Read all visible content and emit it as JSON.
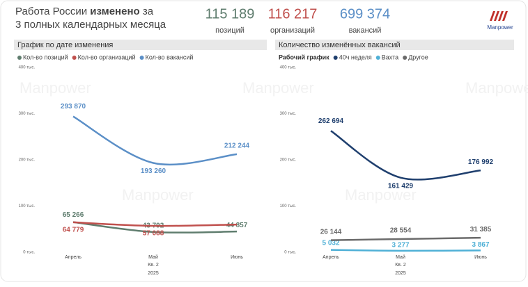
{
  "header": {
    "title": [
      "Работа России",
      "изменено",
      "за"
    ],
    "subtitle": "3 полных календарных месяца",
    "logo": "Manpower",
    "watermark": "Manpower"
  },
  "kpis": [
    {
      "value": "115 189",
      "label": "позиций",
      "color": "#5f7d6e"
    },
    {
      "value": "116 217",
      "label": "организаций",
      "color": "#c0504d"
    },
    {
      "value": "699 374",
      "label": "вакансий",
      "color": "#5b8fc7"
    }
  ],
  "chart_data": [
    {
      "type": "line",
      "title": "График по дате изменения",
      "categories": [
        "Апрель",
        "Май",
        "Июнь"
      ],
      "x_sublabels": [
        "Кв. 2",
        "2025"
      ],
      "series": [
        {
          "name": "Кол-во позиций",
          "color": "#5f7d6e",
          "values": [
            65266,
            43792,
            44857
          ],
          "value_labels": [
            "65 266",
            "43 792",
            "44 857"
          ]
        },
        {
          "name": "Кол-во организаций",
          "color": "#c0504d",
          "values": [
            64779,
            57088,
            60000
          ],
          "value_labels": [
            "64 779",
            "57 088",
            null
          ]
        },
        {
          "name": "Кол-во вакансий",
          "color": "#5b8fc7",
          "values": [
            293870,
            193260,
            212244
          ],
          "value_labels": [
            "293 870",
            "193 260",
            "212 244"
          ]
        }
      ],
      "ylim": [
        0,
        400000
      ],
      "yticks": [
        {
          "value": 0,
          "label": "0 тыс."
        },
        {
          "value": 100000,
          "label": "100 тыс."
        },
        {
          "value": 200000,
          "label": "200 тыс."
        },
        {
          "value": 300000,
          "label": "300 тыс."
        },
        {
          "value": 400000,
          "label": "400 тыс."
        }
      ]
    },
    {
      "type": "line",
      "title": "Количество изменённых вакансий",
      "legend_title": "Рабочий график",
      "categories": [
        "Апрель",
        "Май",
        "Июнь"
      ],
      "x_sublabels": [
        "Кв. 2",
        "2025"
      ],
      "series": [
        {
          "name": "40ч неделя",
          "color": "#1f3f6e",
          "values": [
            262694,
            161429,
            176992
          ],
          "value_labels": [
            "262 694",
            "161 429",
            "176 992"
          ]
        },
        {
          "name": "Вахта",
          "color": "#4fb0d6",
          "values": [
            5032,
            3277,
            3867
          ],
          "value_labels": [
            "5 032",
            "3 277",
            "3 867"
          ]
        },
        {
          "name": "Другое",
          "color": "#6b6b6b",
          "values": [
            26144,
            28554,
            31385
          ],
          "value_labels": [
            "26 144",
            "28 554",
            "31 385"
          ]
        }
      ],
      "ylim": [
        0,
        400000
      ],
      "yticks": [
        {
          "value": 0,
          "label": "0 тыс."
        },
        {
          "value": 100000,
          "label": "100 тыс."
        },
        {
          "value": 200000,
          "label": "200 тыс."
        },
        {
          "value": 300000,
          "label": "300 тыс."
        },
        {
          "value": 400000,
          "label": "400 тыс."
        }
      ]
    }
  ]
}
